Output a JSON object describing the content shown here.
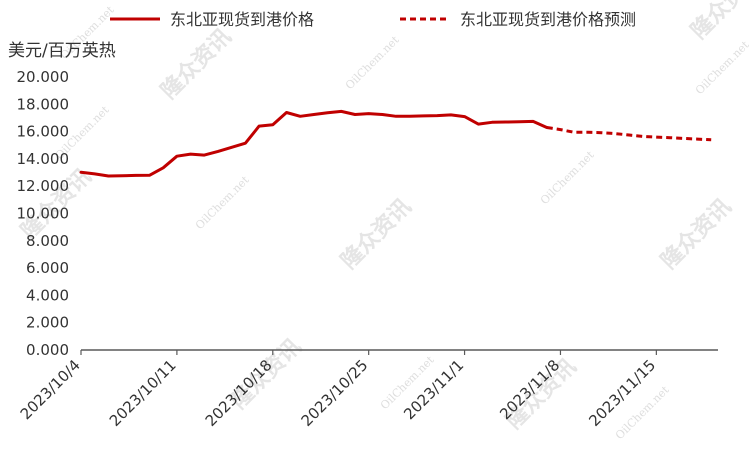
{
  "chart_data": {
    "type": "line",
    "unit_label": "美元/百万英热",
    "y_axis": {
      "min": 0,
      "max": 20,
      "step": 2,
      "ticks": [
        "0.000",
        "2.000",
        "4.000",
        "6.000",
        "8.000",
        "10.000",
        "12.000",
        "14.000",
        "16.000",
        "18.000",
        "20.000"
      ]
    },
    "x_axis": {
      "ticks": [
        {
          "label": "2023/10/4",
          "day": 0
        },
        {
          "label": "2023/10/11",
          "day": 7
        },
        {
          "label": "2023/10/18",
          "day": 14
        },
        {
          "label": "2023/10/25",
          "day": 21
        },
        {
          "label": "2023/11/1",
          "day": 28
        },
        {
          "label": "2023/11/8",
          "day": 35
        },
        {
          "label": "2023/11/15",
          "day": 42
        }
      ],
      "max_day": 46.5
    },
    "series": [
      {
        "name": "东北亚现货到港价格",
        "color": "#c00000",
        "style": "solid",
        "points": [
          [
            0,
            13.02
          ],
          [
            1,
            12.9
          ],
          [
            2,
            12.75
          ],
          [
            3,
            12.77
          ],
          [
            4,
            12.79
          ],
          [
            5,
            12.8
          ],
          [
            6,
            13.35
          ],
          [
            7,
            14.2
          ],
          [
            8,
            14.35
          ],
          [
            9,
            14.28
          ],
          [
            10,
            14.55
          ],
          [
            11,
            14.85
          ],
          [
            12,
            15.15
          ],
          [
            13,
            16.4
          ],
          [
            14,
            16.5
          ],
          [
            15,
            17.4
          ],
          [
            16,
            17.12
          ],
          [
            17,
            17.25
          ],
          [
            18,
            17.38
          ],
          [
            19,
            17.48
          ],
          [
            20,
            17.25
          ],
          [
            21,
            17.32
          ],
          [
            22,
            17.25
          ],
          [
            23,
            17.12
          ],
          [
            24,
            17.13
          ],
          [
            25,
            17.15
          ],
          [
            26,
            17.17
          ],
          [
            27,
            17.22
          ],
          [
            28,
            17.1
          ],
          [
            29,
            16.55
          ],
          [
            30,
            16.68
          ],
          [
            31,
            16.7
          ],
          [
            32,
            16.72
          ],
          [
            33,
            16.75
          ],
          [
            34,
            16.3
          ]
        ]
      },
      {
        "name": "东北亚现货到港价格预测",
        "color": "#c00000",
        "style": "dashed",
        "points": [
          [
            34,
            16.3
          ],
          [
            35,
            16.15
          ],
          [
            36,
            15.95
          ],
          [
            37,
            15.95
          ],
          [
            38,
            15.92
          ],
          [
            39,
            15.85
          ],
          [
            40,
            15.75
          ],
          [
            41,
            15.65
          ],
          [
            42,
            15.6
          ],
          [
            43,
            15.55
          ],
          [
            44,
            15.5
          ],
          [
            45,
            15.45
          ],
          [
            46,
            15.4
          ]
        ]
      }
    ],
    "watermark": {
      "cn": "隆众资讯",
      "en": "OilChem.net"
    }
  }
}
